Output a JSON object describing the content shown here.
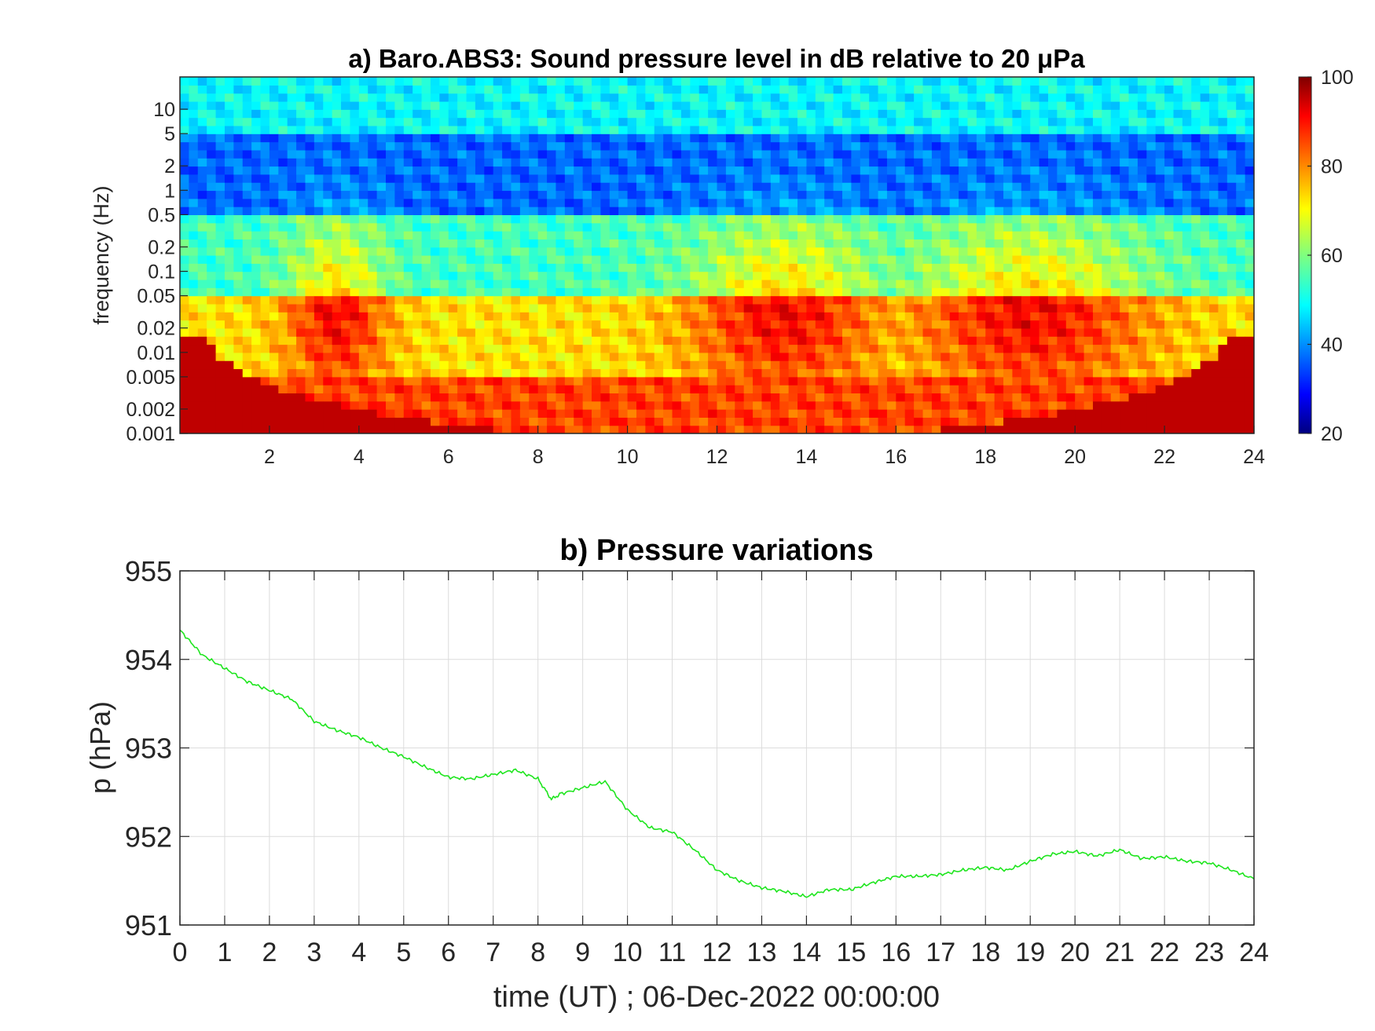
{
  "figure": {
    "panel_a_title": "a) Baro.ABS3: Sound pressure level in dB relative to 20 μPa",
    "panel_b_title": "b) Pressure variations",
    "panel_b_xlabel": "time (UT) ; 06-Dec-2022 00:00:00"
  },
  "chart_data": [
    {
      "type": "heatmap",
      "title": "a) Baro.ABS3: Sound pressure level in dB relative to 20 μPa",
      "xlabel": "",
      "ylabel": "frequency (Hz)",
      "xlim": [
        0,
        24
      ],
      "ylim": [
        0.001,
        25
      ],
      "yscale": "log",
      "xticks": [
        2,
        4,
        6,
        8,
        10,
        12,
        14,
        16,
        18,
        20,
        22,
        24
      ],
      "yticks": [
        0.001,
        0.002,
        0.005,
        0.01,
        0.02,
        0.05,
        0.1,
        0.2,
        0.5,
        1,
        2,
        5,
        10
      ],
      "ytick_labels": [
        "0.001",
        "0.002",
        "0.005",
        "0.01",
        "0.02",
        "0.05",
        "0.1",
        "0.2",
        "0.5",
        "1",
        "2",
        "5",
        "10"
      ],
      "colormap": "jet",
      "clim": [
        20,
        100
      ],
      "colorbar_ticks": [
        20,
        40,
        60,
        80,
        100
      ],
      "bands_db": [
        {
          "frequency_range": [
            5,
            25
          ],
          "level": 50
        },
        {
          "frequency_range": [
            0.5,
            5
          ],
          "level": 38
        },
        {
          "frequency_range": [
            0.05,
            0.5
          ],
          "level": 55
        },
        {
          "frequency_range": [
            0.005,
            0.05
          ],
          "level": 72
        },
        {
          "frequency_range": [
            0.001,
            0.005
          ],
          "level": 85
        }
      ],
      "active_periods_h": [
        [
          3,
          4
        ],
        [
          12,
          15
        ],
        [
          17,
          21
        ]
      ],
      "grid": false
    },
    {
      "type": "line",
      "title": "b) Pressure variations",
      "xlabel": "time (UT) ; 06-Dec-2022 00:00:00",
      "ylabel": "p (hPa)",
      "xlim": [
        0,
        24
      ],
      "ylim": [
        951,
        955
      ],
      "xticks": [
        0,
        1,
        2,
        3,
        4,
        5,
        6,
        7,
        8,
        9,
        10,
        11,
        12,
        13,
        14,
        15,
        16,
        17,
        18,
        19,
        20,
        21,
        22,
        23,
        24
      ],
      "yticks": [
        951,
        952,
        953,
        954,
        955
      ],
      "grid": true,
      "series": [
        {
          "color": "#1ee51e",
          "x": [
            0,
            0.5,
            1,
            1.5,
            2,
            2.5,
            3,
            3.5,
            4,
            4.5,
            5,
            5.5,
            6,
            6.5,
            7,
            7.5,
            8,
            8.3,
            8.5,
            9,
            9.5,
            10,
            10.5,
            11,
            11.5,
            12,
            12.5,
            13,
            13.5,
            14,
            14.5,
            15,
            15.5,
            16,
            16.5,
            17,
            17.5,
            18,
            18.5,
            19,
            19.5,
            20,
            20.5,
            21,
            21.5,
            22,
            22.5,
            23,
            23.5,
            24
          ],
          "y": [
            954.33,
            954.05,
            953.9,
            953.75,
            953.65,
            953.55,
            953.3,
            953.2,
            953.12,
            953.0,
            952.9,
            952.78,
            952.67,
            952.65,
            952.7,
            952.75,
            952.65,
            952.42,
            952.48,
            952.55,
            952.62,
            952.3,
            952.1,
            952.05,
            951.85,
            951.62,
            951.5,
            951.42,
            951.38,
            951.32,
            951.4,
            951.4,
            951.48,
            951.55,
            951.55,
            951.57,
            951.62,
            951.65,
            951.62,
            951.72,
            951.8,
            951.83,
            951.78,
            951.85,
            951.75,
            951.77,
            951.72,
            951.7,
            951.62,
            951.52
          ]
        }
      ]
    }
  ]
}
